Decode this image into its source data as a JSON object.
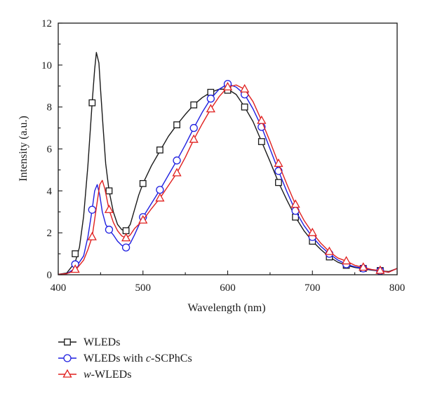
{
  "chart_data": {
    "type": "line",
    "xlabel": "Wavelength (nm)",
    "ylabel": "Intensity (a.u.)",
    "xlim": [
      400,
      800
    ],
    "ylim": [
      0,
      12
    ],
    "xticks": [
      400,
      500,
      600,
      700,
      800
    ],
    "yticks": [
      0,
      2,
      4,
      6,
      8,
      10,
      12
    ],
    "grid": false,
    "legend_position": "below-left",
    "series": [
      {
        "name": "WLEDs",
        "color": "#1a1a1a",
        "marker": "square",
        "line": [
          [
            400,
            0.02
          ],
          [
            410,
            0.08
          ],
          [
            420,
            0.6
          ],
          [
            425,
            1.3
          ],
          [
            430,
            2.8
          ],
          [
            435,
            5.2
          ],
          [
            440,
            8.2
          ],
          [
            443,
            9.8
          ],
          [
            445,
            10.6
          ],
          [
            448,
            10.1
          ],
          [
            450,
            8.8
          ],
          [
            453,
            7.0
          ],
          [
            456,
            5.3
          ],
          [
            460,
            4.0
          ],
          [
            465,
            3.0
          ],
          [
            470,
            2.4
          ],
          [
            475,
            2.15
          ],
          [
            480,
            2.1
          ],
          [
            485,
            2.4
          ],
          [
            490,
            3.1
          ],
          [
            495,
            3.8
          ],
          [
            500,
            4.35
          ],
          [
            510,
            5.2
          ],
          [
            520,
            5.9
          ],
          [
            530,
            6.6
          ],
          [
            540,
            7.15
          ],
          [
            550,
            7.65
          ],
          [
            560,
            8.1
          ],
          [
            570,
            8.45
          ],
          [
            580,
            8.7
          ],
          [
            590,
            8.85
          ],
          [
            600,
            8.85
          ],
          [
            610,
            8.6
          ],
          [
            620,
            8.0
          ],
          [
            630,
            7.3
          ],
          [
            640,
            6.35
          ],
          [
            650,
            5.4
          ],
          [
            660,
            4.4
          ],
          [
            670,
            3.55
          ],
          [
            680,
            2.75
          ],
          [
            690,
            2.1
          ],
          [
            700,
            1.6
          ],
          [
            710,
            1.2
          ],
          [
            720,
            0.85
          ],
          [
            730,
            0.6
          ],
          [
            740,
            0.45
          ],
          [
            750,
            0.35
          ],
          [
            760,
            0.28
          ],
          [
            770,
            0.22
          ],
          [
            780,
            0.18
          ],
          [
            790,
            0.15
          ],
          [
            800,
            0.3
          ]
        ],
        "markers": [
          [
            420,
            1.0
          ],
          [
            440,
            8.2
          ],
          [
            460,
            4.0
          ],
          [
            480,
            2.1
          ],
          [
            500,
            4.35
          ],
          [
            520,
            5.95
          ],
          [
            540,
            7.15
          ],
          [
            560,
            8.1
          ],
          [
            580,
            8.7
          ],
          [
            600,
            8.8
          ],
          [
            620,
            8.0
          ],
          [
            640,
            6.35
          ],
          [
            660,
            4.4
          ],
          [
            680,
            2.75
          ],
          [
            700,
            1.6
          ],
          [
            720,
            0.85
          ],
          [
            740,
            0.45
          ],
          [
            760,
            0.3
          ],
          [
            780,
            0.2
          ]
        ]
      },
      {
        "name": "WLEDs with c-SCPhCs",
        "color": "#1f1fe0",
        "marker": "circle",
        "line": [
          [
            400,
            0.02
          ],
          [
            410,
            0.05
          ],
          [
            420,
            0.3
          ],
          [
            430,
            0.9
          ],
          [
            435,
            1.8
          ],
          [
            440,
            3.1
          ],
          [
            443,
            4.0
          ],
          [
            446,
            4.3
          ],
          [
            449,
            3.8
          ],
          [
            452,
            3.0
          ],
          [
            456,
            2.4
          ],
          [
            460,
            2.15
          ],
          [
            465,
            1.9
          ],
          [
            470,
            1.6
          ],
          [
            475,
            1.4
          ],
          [
            480,
            1.3
          ],
          [
            485,
            1.5
          ],
          [
            490,
            1.9
          ],
          [
            495,
            2.35
          ],
          [
            500,
            2.75
          ],
          [
            510,
            3.4
          ],
          [
            520,
            4.05
          ],
          [
            530,
            4.75
          ],
          [
            540,
            5.45
          ],
          [
            550,
            6.2
          ],
          [
            560,
            7.0
          ],
          [
            570,
            7.75
          ],
          [
            580,
            8.4
          ],
          [
            590,
            8.85
          ],
          [
            600,
            9.1
          ],
          [
            610,
            8.95
          ],
          [
            620,
            8.6
          ],
          [
            630,
            7.9
          ],
          [
            640,
            7.05
          ],
          [
            650,
            6.0
          ],
          [
            660,
            4.95
          ],
          [
            670,
            3.95
          ],
          [
            680,
            3.05
          ],
          [
            690,
            2.35
          ],
          [
            700,
            1.8
          ],
          [
            710,
            1.35
          ],
          [
            720,
            1.0
          ],
          [
            730,
            0.7
          ],
          [
            740,
            0.5
          ],
          [
            750,
            0.38
          ],
          [
            760,
            0.3
          ],
          [
            770,
            0.24
          ],
          [
            780,
            0.18
          ],
          [
            790,
            0.12
          ],
          [
            800,
            0.3
          ]
        ],
        "markers": [
          [
            420,
            0.5
          ],
          [
            440,
            3.1
          ],
          [
            460,
            2.15
          ],
          [
            480,
            1.3
          ],
          [
            500,
            2.75
          ],
          [
            520,
            4.05
          ],
          [
            540,
            5.45
          ],
          [
            560,
            7.0
          ],
          [
            580,
            8.4
          ],
          [
            600,
            9.1
          ],
          [
            620,
            8.6
          ],
          [
            640,
            7.05
          ],
          [
            660,
            4.95
          ],
          [
            680,
            3.05
          ],
          [
            700,
            1.8
          ],
          [
            720,
            1.0
          ],
          [
            740,
            0.5
          ],
          [
            760,
            0.3
          ],
          [
            780,
            0.18
          ]
        ]
      },
      {
        "name": "w-WLEDs",
        "color": "#e0201f",
        "marker": "triangle",
        "line": [
          [
            400,
            0.02
          ],
          [
            410,
            0.05
          ],
          [
            420,
            0.2
          ],
          [
            430,
            0.7
          ],
          [
            435,
            1.2
          ],
          [
            440,
            1.8
          ],
          [
            445,
            3.2
          ],
          [
            449,
            4.3
          ],
          [
            452,
            4.5
          ],
          [
            455,
            4.1
          ],
          [
            458,
            3.5
          ],
          [
            460,
            3.1
          ],
          [
            465,
            2.5
          ],
          [
            470,
            2.1
          ],
          [
            475,
            1.85
          ],
          [
            480,
            1.75
          ],
          [
            485,
            1.9
          ],
          [
            490,
            2.2
          ],
          [
            495,
            2.4
          ],
          [
            500,
            2.6
          ],
          [
            510,
            3.15
          ],
          [
            520,
            3.65
          ],
          [
            530,
            4.25
          ],
          [
            540,
            4.85
          ],
          [
            550,
            5.6
          ],
          [
            560,
            6.45
          ],
          [
            570,
            7.2
          ],
          [
            580,
            7.9
          ],
          [
            590,
            8.5
          ],
          [
            600,
            8.95
          ],
          [
            610,
            9.05
          ],
          [
            620,
            8.85
          ],
          [
            630,
            8.25
          ],
          [
            640,
            7.35
          ],
          [
            650,
            6.35
          ],
          [
            660,
            5.3
          ],
          [
            670,
            4.3
          ],
          [
            680,
            3.35
          ],
          [
            690,
            2.6
          ],
          [
            700,
            2.0
          ],
          [
            710,
            1.5
          ],
          [
            720,
            1.1
          ],
          [
            730,
            0.8
          ],
          [
            740,
            0.65
          ],
          [
            750,
            0.45
          ],
          [
            760,
            0.35
          ],
          [
            770,
            0.25
          ],
          [
            780,
            0.2
          ],
          [
            790,
            0.12
          ],
          [
            800,
            0.3
          ]
        ],
        "markers": [
          [
            420,
            0.25
          ],
          [
            440,
            1.8
          ],
          [
            460,
            3.1
          ],
          [
            480,
            1.75
          ],
          [
            500,
            2.6
          ],
          [
            520,
            3.65
          ],
          [
            540,
            4.85
          ],
          [
            560,
            6.45
          ],
          [
            580,
            7.9
          ],
          [
            600,
            8.95
          ],
          [
            620,
            8.85
          ],
          [
            640,
            7.35
          ],
          [
            660,
            5.3
          ],
          [
            680,
            3.35
          ],
          [
            700,
            2.0
          ],
          [
            720,
            1.1
          ],
          [
            740,
            0.65
          ],
          [
            760,
            0.35
          ],
          [
            780,
            0.2
          ]
        ]
      }
    ]
  },
  "legend": {
    "items": [
      {
        "parts": [
          {
            "text": "WLEDs",
            "italic": false
          }
        ]
      },
      {
        "parts": [
          {
            "text": "WLEDs with ",
            "italic": false
          },
          {
            "text": "c",
            "italic": true
          },
          {
            "text": "-SCPhCs",
            "italic": false
          }
        ]
      },
      {
        "parts": [
          {
            "text": "w",
            "italic": true
          },
          {
            "text": "-WLEDs",
            "italic": false
          }
        ]
      }
    ]
  }
}
